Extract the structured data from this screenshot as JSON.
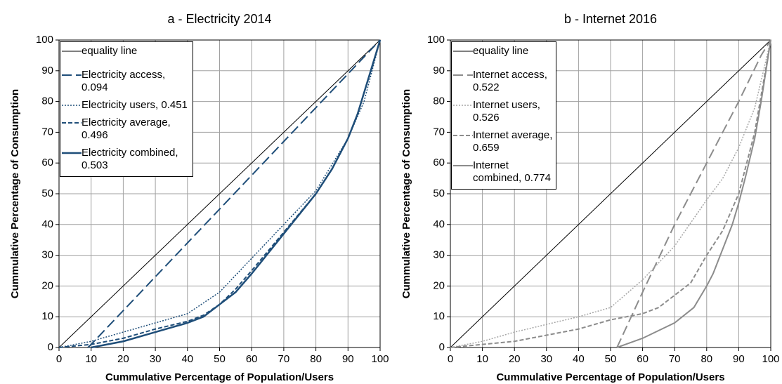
{
  "chart_data": [
    {
      "type": "line",
      "title": "a - Electricity 2014",
      "xlabel": "Cummulative Percentage of Population/Users",
      "ylabel": "Cummulative Percentage of Consumption",
      "xlim": [
        0,
        100
      ],
      "ylim": [
        0,
        100
      ],
      "xticks": [
        0,
        10,
        20,
        30,
        40,
        50,
        60,
        70,
        80,
        90,
        100
      ],
      "yticks": [
        0,
        10,
        20,
        30,
        40,
        50,
        60,
        70,
        80,
        90,
        100
      ],
      "grid": true,
      "legend": "upper left",
      "series": [
        {
          "name": "equality line",
          "color": "#000000",
          "dash": "solid",
          "width": 1,
          "x": [
            0,
            100
          ],
          "values": [
            0,
            100
          ]
        },
        {
          "name": "Electricity access, 0.094",
          "color": "#1f4e79",
          "dash": "longdash",
          "width": 2,
          "x": [
            9,
            10,
            100
          ],
          "values": [
            0,
            1,
            100
          ]
        },
        {
          "name": "Electricity users, 0.451",
          "color": "#1f4e79",
          "dash": "dot",
          "width": 1.5,
          "x": [
            0,
            10,
            20,
            30,
            40,
            50,
            60,
            70,
            80,
            90,
            95,
            100
          ],
          "values": [
            0,
            2,
            5,
            8,
            11,
            18,
            29,
            40,
            51,
            68,
            80,
            100
          ]
        },
        {
          "name": "Electricity average, 0.496",
          "color": "#1f4e79",
          "dash": "dash",
          "width": 2,
          "x": [
            0,
            10,
            20,
            30,
            40,
            45,
            50,
            55,
            60,
            70,
            80,
            85,
            90,
            93,
            100
          ],
          "values": [
            0,
            1,
            3,
            6,
            8.5,
            10.5,
            14,
            19,
            25,
            37.5,
            50,
            58,
            68,
            76,
            100
          ]
        },
        {
          "name": "Electricity combined, 0.503",
          "color": "#1f4e79",
          "dash": "solid",
          "width": 2.5,
          "x": [
            10,
            20,
            30,
            40,
            45,
            50,
            55,
            60,
            70,
            80,
            85,
            90,
            93,
            100
          ],
          "values": [
            0,
            2,
            5,
            8,
            10,
            14,
            18,
            24,
            37,
            50,
            58,
            68,
            76,
            100
          ]
        }
      ]
    },
    {
      "type": "line",
      "title": "b - Internet 2016",
      "xlabel": "Cummulative Percentage of Population/Users",
      "ylabel": "Cummulative Percentage of Consumption",
      "xlim": [
        0,
        100
      ],
      "ylim": [
        0,
        100
      ],
      "xticks": [
        0,
        10,
        20,
        30,
        40,
        50,
        60,
        70,
        80,
        90,
        100
      ],
      "yticks": [
        0,
        10,
        20,
        30,
        40,
        50,
        60,
        70,
        80,
        90,
        100
      ],
      "grid": true,
      "legend": "upper left",
      "series": [
        {
          "name": "equality line",
          "color": "#000000",
          "dash": "solid",
          "width": 1,
          "x": [
            0,
            100
          ],
          "values": [
            0,
            100
          ]
        },
        {
          "name": "Internet access, 0.522",
          "color": "#8c8c8c",
          "dash": "longdash",
          "width": 2,
          "x": [
            52,
            60,
            70,
            80,
            90,
            97,
            100
          ],
          "values": [
            0,
            18,
            40,
            60,
            80,
            95,
            100
          ]
        },
        {
          "name": "Internet users, 0.526",
          "color": "#a6a6a6",
          "dash": "dot",
          "width": 1.5,
          "x": [
            0,
            10,
            20,
            30,
            40,
            50,
            60,
            70,
            80,
            85,
            90,
            95,
            100
          ],
          "values": [
            0,
            2,
            5,
            7.5,
            10,
            13,
            22,
            33,
            48,
            55,
            65,
            78,
            100
          ]
        },
        {
          "name": "Internet average, 0.659",
          "color": "#8c8c8c",
          "dash": "dash",
          "width": 2,
          "x": [
            0,
            10,
            20,
            30,
            40,
            50,
            60,
            65,
            70,
            75,
            80,
            85,
            90,
            95,
            100
          ],
          "values": [
            0,
            1,
            2,
            4,
            6,
            9,
            11,
            13,
            17,
            21,
            30,
            38,
            50,
            70,
            100
          ]
        },
        {
          "name": "Internet combined, 0.774",
          "color": "#8c8c8c",
          "dash": "solid",
          "width": 2,
          "x": [
            52,
            60,
            70,
            76,
            80,
            82,
            85,
            88,
            90,
            92,
            95,
            97,
            100
          ],
          "values": [
            0,
            3,
            8,
            13,
            20,
            24,
            32,
            40,
            47,
            55,
            68,
            80,
            100
          ]
        }
      ]
    }
  ]
}
